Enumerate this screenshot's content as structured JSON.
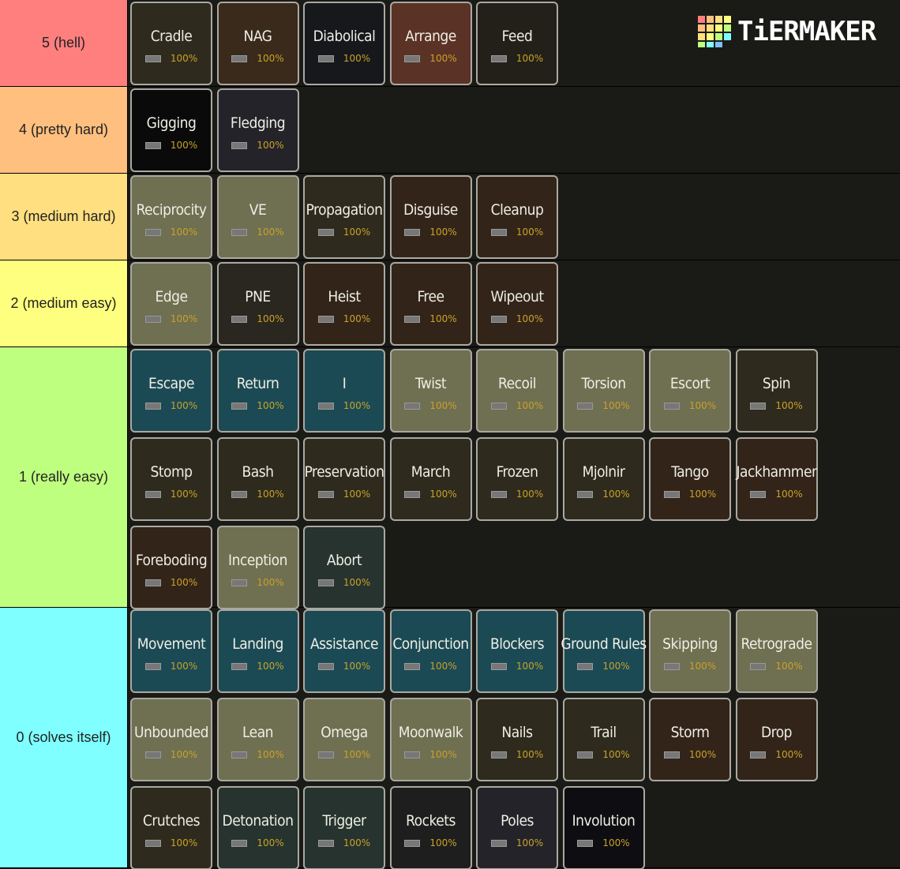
{
  "logo": "TiERMAKER",
  "tiers": [
    {
      "label": "5 (hell)",
      "color": "#ff7f7f",
      "items": [
        {
          "name": "Cradle",
          "percent": "100%",
          "color": "#2e2a1e"
        },
        {
          "name": "NAG",
          "percent": "100%",
          "color": "#3a2a1c"
        },
        {
          "name": "Diabolical",
          "percent": "100%",
          "color": "#16181c"
        },
        {
          "name": "Arrange",
          "percent": "100%",
          "color": "#5b3226"
        },
        {
          "name": "Feed",
          "percent": "100%",
          "color": "#222018"
        }
      ]
    },
    {
      "label": "4 (pretty hard)",
      "color": "#ffbf7f",
      "items": [
        {
          "name": "Gigging",
          "percent": "100%",
          "color": "#0a0a0a"
        },
        {
          "name": "Fledging",
          "percent": "100%",
          "color": "#24232a"
        }
      ]
    },
    {
      "label": "3 (medium hard)",
      "color": "#ffdf7f",
      "items": [
        {
          "name": "Reciprocity",
          "percent": "100%",
          "color": "#6f6f52"
        },
        {
          "name": "VE",
          "percent": "100%",
          "color": "#6f6f52"
        },
        {
          "name": "Propagation",
          "percent": "100%",
          "color": "#2e2a1e"
        },
        {
          "name": "Disguise",
          "percent": "100%",
          "color": "#33241a"
        },
        {
          "name": "Cleanup",
          "percent": "100%",
          "color": "#33241a"
        }
      ]
    },
    {
      "label": "2 (medium easy)",
      "color": "#ffff7f",
      "items": [
        {
          "name": "Edge",
          "percent": "100%",
          "color": "#6f6f52"
        },
        {
          "name": "PNE",
          "percent": "100%",
          "color": "#2a2620"
        },
        {
          "name": "Heist",
          "percent": "100%",
          "color": "#33241a"
        },
        {
          "name": "Free",
          "percent": "100%",
          "color": "#33241a"
        },
        {
          "name": "Wipeout",
          "percent": "100%",
          "color": "#33241a"
        }
      ]
    },
    {
      "label": "1 (really easy)",
      "color": "#bfff7f",
      "items": [
        {
          "name": "Escape",
          "percent": "100%",
          "color": "#1b4a55"
        },
        {
          "name": "Return",
          "percent": "100%",
          "color": "#1b4a55"
        },
        {
          "name": "I",
          "percent": "100%",
          "color": "#1b4a55"
        },
        {
          "name": "Twist",
          "percent": "100%",
          "color": "#6f6f52"
        },
        {
          "name": "Recoil",
          "percent": "100%",
          "color": "#6f6f52"
        },
        {
          "name": "Torsion",
          "percent": "100%",
          "color": "#6f6f52"
        },
        {
          "name": "Escort",
          "percent": "100%",
          "color": "#6f6f52"
        },
        {
          "name": "Spin",
          "percent": "100%",
          "color": "#2e2a1e"
        },
        {
          "name": "Stomp",
          "percent": "100%",
          "color": "#2e2a1e"
        },
        {
          "name": "Bash",
          "percent": "100%",
          "color": "#2e2a1e"
        },
        {
          "name": "Preservation",
          "percent": "100%",
          "color": "#2e2a1e"
        },
        {
          "name": "March",
          "percent": "100%",
          "color": "#2e2a1e"
        },
        {
          "name": "Frozen",
          "percent": "100%",
          "color": "#2e2a1e"
        },
        {
          "name": "Mjolnir",
          "percent": "100%",
          "color": "#2e2a1e"
        },
        {
          "name": "Tango",
          "percent": "100%",
          "color": "#33241a"
        },
        {
          "name": "Jackhammer",
          "percent": "100%",
          "color": "#33241a"
        },
        {
          "name": "Foreboding",
          "percent": "100%",
          "color": "#33241a"
        },
        {
          "name": "Inception",
          "percent": "100%",
          "color": "#6f6f52"
        },
        {
          "name": "Abort",
          "percent": "100%",
          "color": "#26332e"
        }
      ]
    },
    {
      "label": "0 (solves itself)",
      "color": "#7fffff",
      "items": [
        {
          "name": "Movement",
          "percent": "100%",
          "color": "#1b4a55"
        },
        {
          "name": "Landing",
          "percent": "100%",
          "color": "#1b4a55"
        },
        {
          "name": "Assistance",
          "percent": "100%",
          "color": "#1b4a55"
        },
        {
          "name": "Conjunction",
          "percent": "100%",
          "color": "#1b4a55"
        },
        {
          "name": "Blockers",
          "percent": "100%",
          "color": "#1b4a55"
        },
        {
          "name": "Ground Rules",
          "percent": "100%",
          "color": "#1b4a55"
        },
        {
          "name": "Skipping",
          "percent": "100%",
          "color": "#6f6f52"
        },
        {
          "name": "Retrograde",
          "percent": "100%",
          "color": "#6f6f52"
        },
        {
          "name": "Unbounded",
          "percent": "100%",
          "color": "#6f6f52"
        },
        {
          "name": "Lean",
          "percent": "100%",
          "color": "#6f6f52"
        },
        {
          "name": "Omega",
          "percent": "100%",
          "color": "#6f6f52"
        },
        {
          "name": "Moonwalk",
          "percent": "100%",
          "color": "#6f6f52"
        },
        {
          "name": "Nails",
          "percent": "100%",
          "color": "#2e2a1e"
        },
        {
          "name": "Trail",
          "percent": "100%",
          "color": "#2e2a1e"
        },
        {
          "name": "Storm",
          "percent": "100%",
          "color": "#33241a"
        },
        {
          "name": "Drop",
          "percent": "100%",
          "color": "#33241a"
        },
        {
          "name": "Crutches",
          "percent": "100%",
          "color": "#2e2a1e"
        },
        {
          "name": "Detonation",
          "percent": "100%",
          "color": "#26332e"
        },
        {
          "name": "Trigger",
          "percent": "100%",
          "color": "#26332e"
        },
        {
          "name": "Rockets",
          "percent": "100%",
          "color": "#1e1e1e"
        },
        {
          "name": "Poles",
          "percent": "100%",
          "color": "#24232a"
        },
        {
          "name": "Involution",
          "percent": "100%",
          "color": "#0e0e12"
        }
      ]
    }
  ]
}
